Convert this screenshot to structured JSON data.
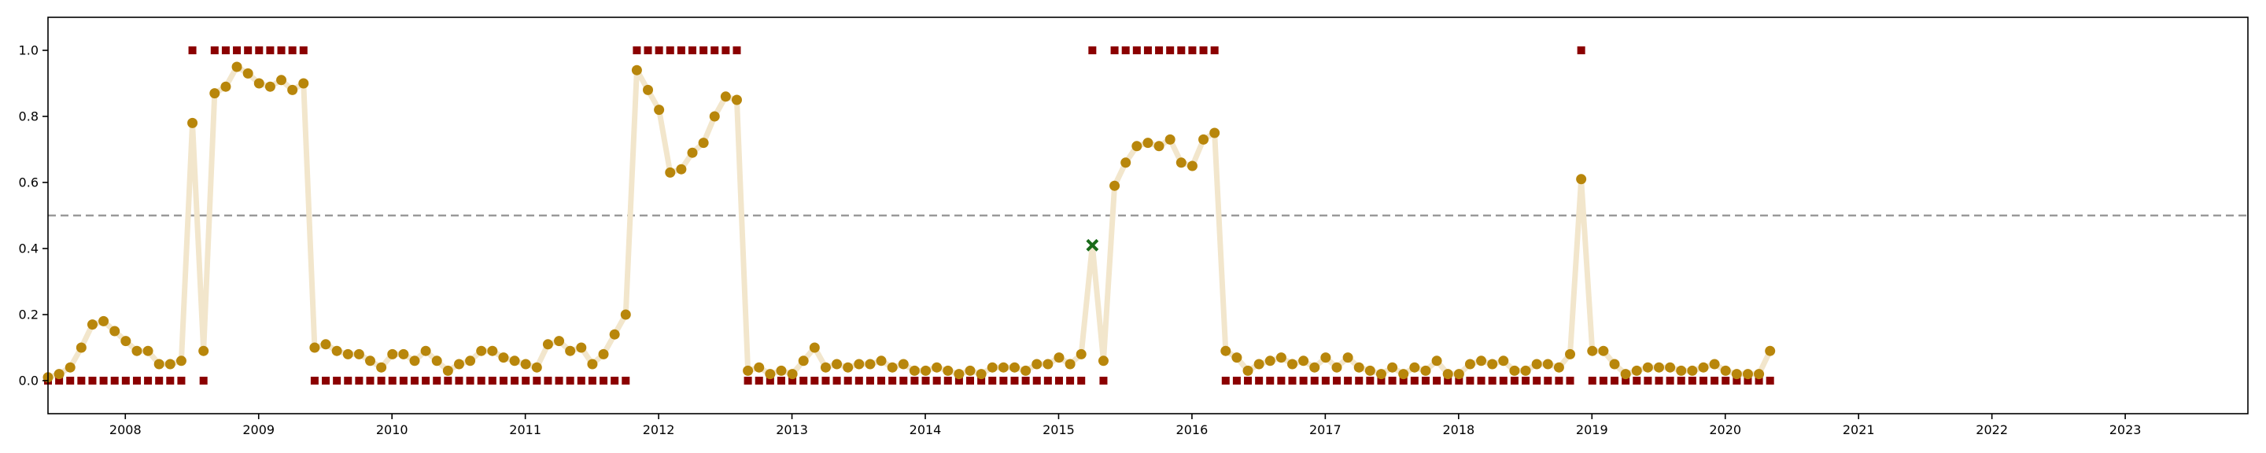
{
  "chart_data": {
    "type": "line",
    "title": "",
    "xlabel": "",
    "ylabel": "",
    "xlim": [
      2007.42,
      2023.92
    ],
    "ylim": [
      -0.1,
      1.1
    ],
    "x_ticks": [
      2008,
      2009,
      2010,
      2011,
      2012,
      2013,
      2014,
      2015,
      2016,
      2017,
      2018,
      2019,
      2020,
      2021,
      2022,
      2023
    ],
    "x_tick_labels": [
      "2008",
      "2009",
      "2010",
      "2011",
      "2012",
      "2013",
      "2014",
      "2015",
      "2016",
      "2017",
      "2018",
      "2019",
      "2020",
      "2021",
      "2022",
      "2023"
    ],
    "y_ticks": [
      0.0,
      0.2,
      0.4,
      0.6,
      0.8,
      1.0
    ],
    "y_tick_labels": [
      "0.0",
      "0.2",
      "0.4",
      "0.6",
      "0.8",
      "1.0"
    ],
    "grid": false,
    "threshold": 0.5,
    "x_start": 2007.42,
    "x_step": 0.08333,
    "colors": {
      "line": "#f2e6cc",
      "points": "#b8860b",
      "markers": "#8b0000",
      "threshold": "#999999",
      "highlight": "#1a6b1a"
    },
    "probability": [
      0.01,
      0.02,
      0.04,
      0.1,
      0.17,
      0.18,
      0.15,
      0.12,
      0.09,
      0.09,
      0.05,
      0.05,
      0.06,
      0.78,
      0.09,
      0.87,
      0.89,
      0.95,
      0.93,
      0.9,
      0.89,
      0.91,
      0.88,
      0.9,
      0.1,
      0.11,
      0.09,
      0.08,
      0.08,
      0.06,
      0.04,
      0.08,
      0.08,
      0.06,
      0.09,
      0.06,
      0.03,
      0.05,
      0.06,
      0.09,
      0.09,
      0.07,
      0.06,
      0.05,
      0.04,
      0.11,
      0.12,
      0.09,
      0.1,
      0.05,
      0.08,
      0.14,
      0.2,
      0.94,
      0.88,
      0.82,
      0.63,
      0.64,
      0.69,
      0.72,
      0.8,
      0.86,
      0.85,
      0.03,
      0.04,
      0.02,
      0.03,
      0.02,
      0.06,
      0.1,
      0.04,
      0.05,
      0.04,
      0.05,
      0.05,
      0.06,
      0.04,
      0.05,
      0.03,
      0.03,
      0.04,
      0.03,
      0.02,
      0.03,
      0.02,
      0.04,
      0.04,
      0.04,
      0.03,
      0.05,
      0.05,
      0.07,
      0.05,
      0.08,
      0.41,
      0.06,
      0.59,
      0.66,
      0.71,
      0.72,
      0.71,
      0.73,
      0.66,
      0.65,
      0.73,
      0.75,
      0.09,
      0.07,
      0.03,
      0.05,
      0.06,
      0.07,
      0.05,
      0.06,
      0.04,
      0.07,
      0.04,
      0.07,
      0.04,
      0.03,
      0.02,
      0.04,
      0.02,
      0.04,
      0.03,
      0.06,
      0.02,
      0.02,
      0.05,
      0.06,
      0.05,
      0.06,
      0.03,
      0.03,
      0.05,
      0.05,
      0.04,
      0.08,
      0.61,
      0.09,
      0.09,
      0.05,
      0.02,
      0.03,
      0.04,
      0.04,
      0.04,
      0.03,
      0.03,
      0.04,
      0.05,
      0.03,
      0.02,
      0.02,
      0.02,
      0.09
    ],
    "label": [
      0,
      0,
      0,
      0,
      0,
      0,
      0,
      0,
      0,
      0,
      0,
      0,
      0,
      1,
      0,
      1,
      1,
      1,
      1,
      1,
      1,
      1,
      1,
      1,
      0,
      0,
      0,
      0,
      0,
      0,
      0,
      0,
      0,
      0,
      0,
      0,
      0,
      0,
      0,
      0,
      0,
      0,
      0,
      0,
      0,
      0,
      0,
      0,
      0,
      0,
      0,
      0,
      0,
      1,
      1,
      1,
      1,
      1,
      1,
      1,
      1,
      1,
      1,
      0,
      0,
      0,
      0,
      0,
      0,
      0,
      0,
      0,
      0,
      0,
      0,
      0,
      0,
      0,
      0,
      0,
      0,
      0,
      0,
      0,
      0,
      0,
      0,
      0,
      0,
      0,
      0,
      0,
      0,
      0,
      1,
      0,
      1,
      1,
      1,
      1,
      1,
      1,
      1,
      1,
      1,
      1,
      0,
      0,
      0,
      0,
      0,
      0,
      0,
      0,
      0,
      0,
      0,
      0,
      0,
      0,
      0,
      0,
      0,
      0,
      0,
      0,
      0,
      0,
      0,
      0,
      0,
      0,
      0,
      0,
      0,
      0,
      0,
      0,
      1,
      0,
      0,
      0,
      0,
      0,
      0,
      0,
      0,
      0,
      0,
      0,
      0,
      0,
      0,
      0,
      0,
      0
    ],
    "highlight_index": 94
  }
}
